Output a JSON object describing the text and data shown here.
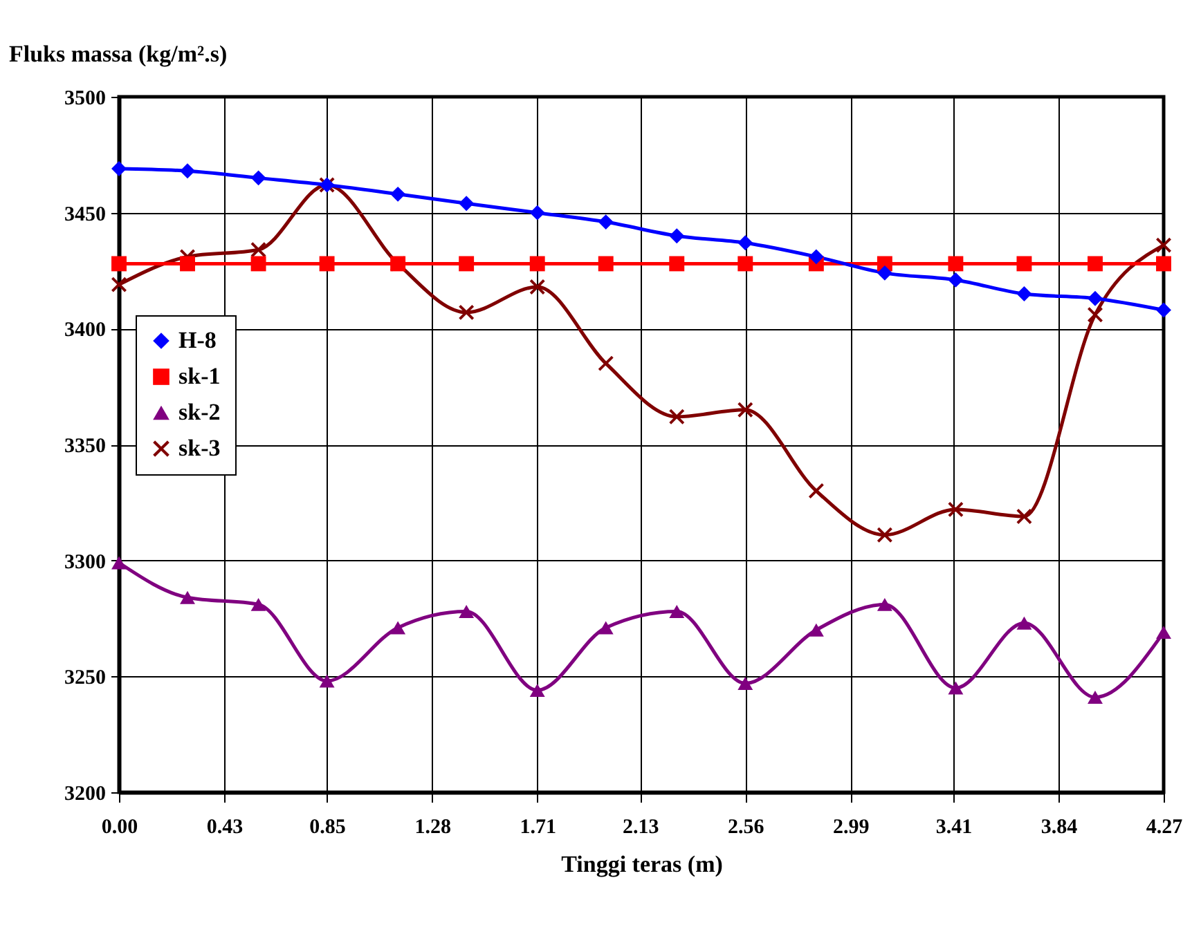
{
  "chart_data": {
    "type": "line",
    "xlabel": "Tinggi teras (m)",
    "ylabel": "Fluks massa (kg/m².s)",
    "x": [
      0,
      0.28,
      0.57,
      0.85,
      1.14,
      1.42,
      1.71,
      1.99,
      2.28,
      2.56,
      2.85,
      3.13,
      3.42,
      3.7,
      3.99,
      4.27
    ],
    "series": [
      {
        "name": "H-8",
        "color": "#0000ff",
        "marker": "diamond",
        "values": [
          3469,
          3468,
          3465,
          3462,
          3458,
          3454,
          3450,
          3446,
          3440,
          3437,
          3431,
          3424,
          3421,
          3415,
          3413,
          3408
        ]
      },
      {
        "name": "sk-1",
        "color": "#ff0000",
        "marker": "square",
        "values": [
          3428,
          3428,
          3428,
          3428,
          3428,
          3428,
          3428,
          3428,
          3428,
          3428,
          3428,
          3428,
          3428,
          3428,
          3428,
          3428
        ]
      },
      {
        "name": "sk-2",
        "color": "#800080",
        "marker": "triangle",
        "values": [
          3299,
          3284,
          3281,
          3248,
          3271,
          3278,
          3244,
          3271,
          3278,
          3247,
          3270,
          3281,
          3245,
          3273,
          3241,
          3269
        ]
      },
      {
        "name": "sk-3",
        "color": "#800000",
        "marker": "cross",
        "values": [
          3419,
          3431,
          3434,
          3462,
          3428,
          3407,
          3418,
          3385,
          3362,
          3365,
          3330,
          3311,
          3322,
          3319,
          3406,
          3436
        ]
      }
    ],
    "xlim": [
      0,
      4.27
    ],
    "xticks": [
      {
        "value": 0,
        "label": "0.00"
      },
      0.43,
      0.85,
      1.28,
      1.71,
      2.13,
      2.56,
      2.99,
      3.41,
      3.84,
      4.27
    ],
    "ylim": [
      3200,
      3500
    ],
    "yticks": [
      3200,
      3250,
      3300,
      3350,
      3400,
      3450,
      3500
    ],
    "grid": true,
    "legend": "left",
    "line_style": "solid"
  }
}
